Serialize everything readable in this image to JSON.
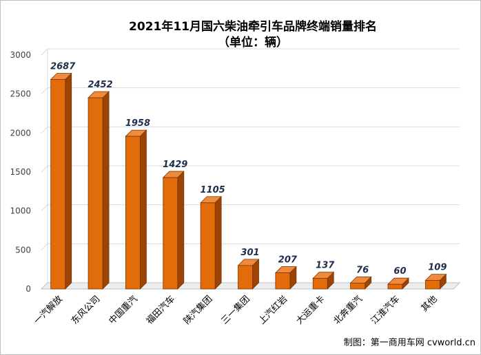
{
  "chart_data": {
    "type": "bar",
    "title": "2021年11月国六柴油牵引车品牌终端销量排名",
    "subtitle": "（单位：辆）",
    "categories": [
      "一汽解放",
      "东风公司",
      "中国重汽",
      "福田汽车",
      "陕汽集团",
      "三一集团",
      "上汽红岩",
      "大运重卡",
      "北奔重汽",
      "江淮汽车",
      "其他"
    ],
    "values": [
      2687,
      2452,
      1958,
      1429,
      1105,
      301,
      207,
      137,
      76,
      60,
      109
    ],
    "data_labels": [
      "2687",
      "2452",
      "1958",
      "1429",
      "1105",
      "301",
      "207",
      "137",
      "76",
      "60",
      "109"
    ],
    "yticks": [
      "0",
      "500",
      "1000",
      "1500",
      "2000",
      "2500",
      "3000"
    ],
    "ylim": [
      0,
      3000
    ],
    "grid": true,
    "style": "3d-bar",
    "colors": {
      "front": "#e36c0a",
      "side": "#9c4306",
      "top": "#f08a3c",
      "edge": "#7a3504",
      "grid": "#d9d9d9"
    }
  },
  "credit": "制图：第一商用车网 cvworld.cn"
}
